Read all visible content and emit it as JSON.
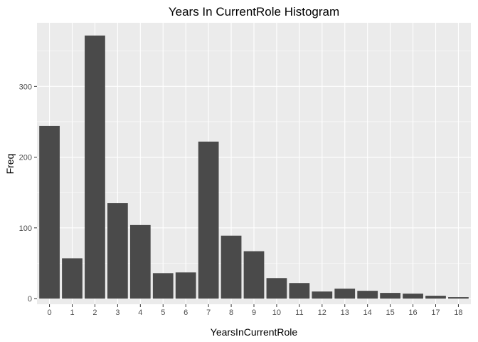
{
  "chart_data": {
    "type": "bar",
    "title": "Years In CurrentRole   Histogram",
    "xlabel": "YearsInCurrentRole",
    "ylabel": "Freq",
    "categories": [
      "0",
      "1",
      "2",
      "3",
      "4",
      "5",
      "6",
      "7",
      "8",
      "9",
      "10",
      "11",
      "12",
      "13",
      "14",
      "15",
      "16",
      "17",
      "18"
    ],
    "values": [
      244,
      57,
      372,
      135,
      104,
      36,
      37,
      222,
      89,
      67,
      29,
      22,
      10,
      14,
      11,
      8,
      7,
      4,
      2
    ],
    "ylim": [
      -8,
      390
    ],
    "yticks": [
      0,
      100,
      200,
      300
    ],
    "grid": true,
    "colors": {
      "panel": "#ebebeb",
      "grid_major": "#ffffff",
      "bar": "#4a4a4a"
    }
  }
}
